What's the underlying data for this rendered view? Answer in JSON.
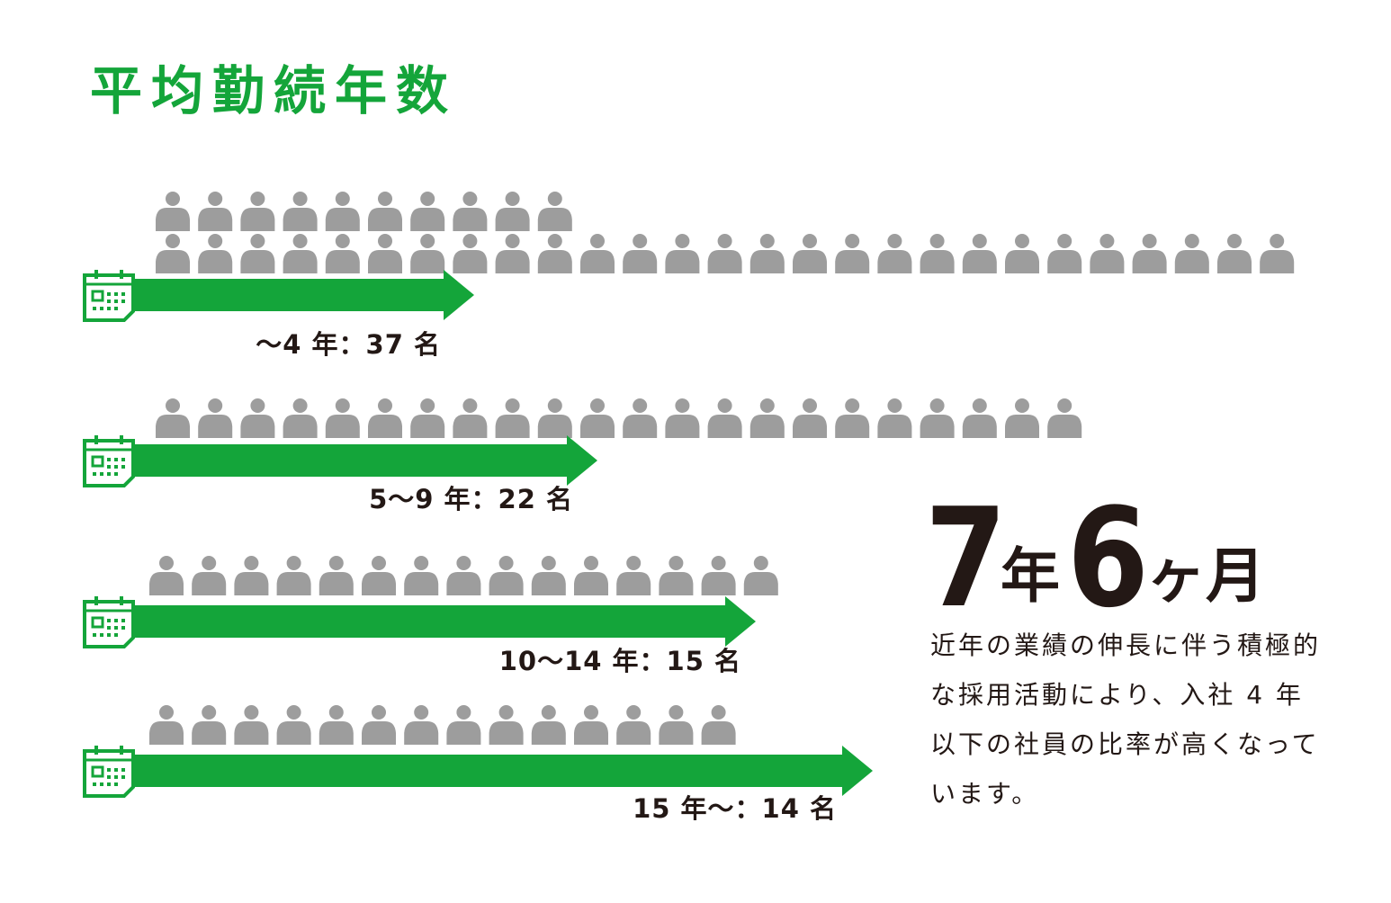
{
  "title": "平均勤続年数",
  "colors": {
    "accent": "#14a53a",
    "person": "#9d9d9d",
    "text": "#231815"
  },
  "icons": {
    "row_icon": "calendar-icon",
    "unit_icon": "person-icon"
  },
  "chart_data": {
    "type": "bar",
    "orientation": "horizontal",
    "unit_icon": "person-icon",
    "categories": [
      "〜4年",
      "5〜9年",
      "10〜14年",
      "15年〜"
    ],
    "values": [
      37,
      22,
      15,
      14
    ],
    "labels": [
      "〜4 年：37 名",
      "5〜9 年：22 名",
      "10〜14 年：15 名",
      "15 年〜：14 名"
    ]
  },
  "summary": {
    "years": "7",
    "years_unit": "年",
    "months": "6",
    "months_unit": "ヶ月",
    "description": "近年の業績の伸長に伴う積極的な採用活動により、入社 4 年以下の社員の比率が高くなっています。"
  }
}
